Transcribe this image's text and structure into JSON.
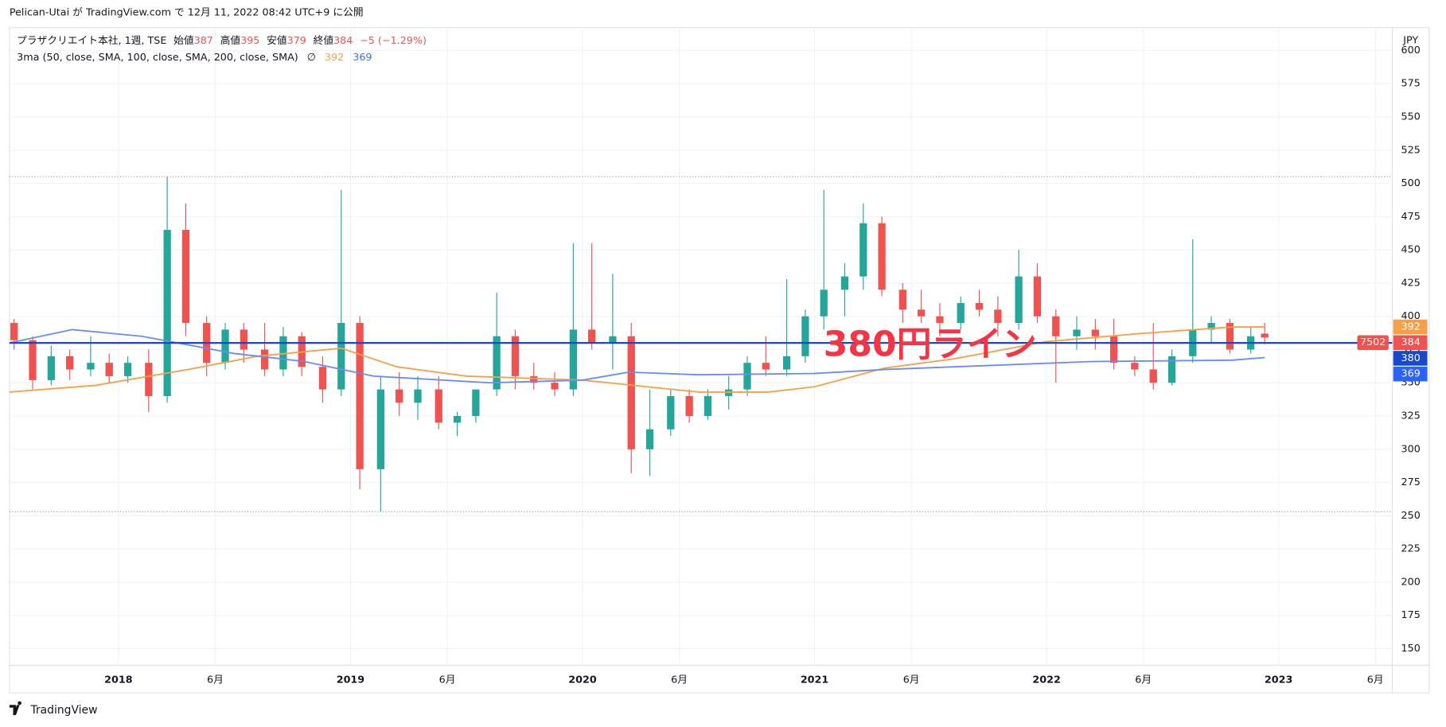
{
  "header": {
    "published": "Pelican-Utai が TradingView.com で 12月 11, 2022 08:42 UTC+9 に公開"
  },
  "footer": {
    "brand": "TradingView"
  },
  "chart_data": {
    "type": "candlestick",
    "symbol": "プラザクリエイト本社, 1週, TSE",
    "legend": {
      "open_label": "始値",
      "high_label": "高値",
      "low_label": "安値",
      "close_label": "終値",
      "change": "−5 (−1.29%)",
      "indicator": "3ma (50, close, SMA, 100, close, SMA, 200, close, SMA)",
      "empty_value": "∅"
    },
    "currency": "JPY",
    "symbol_code": "7502",
    "annotation": "380円ライン",
    "up_color": "#26a69a",
    "down_color": "#ef5350",
    "xlim": [
      2017.53,
      2023.49
    ],
    "ylim": [
      137.5,
      603.3
    ],
    "yticks": [
      150,
      175,
      200,
      225,
      250,
      275,
      300,
      325,
      350,
      375,
      400,
      425,
      450,
      475,
      500,
      525,
      550,
      575,
      600
    ],
    "xticks": [
      2018,
      {
        "value": 2018.417,
        "label": "6月"
      },
      2019,
      {
        "value": 2019.417,
        "label": "6月"
      },
      2020,
      {
        "value": 2020.417,
        "label": "6月"
      },
      2021,
      {
        "value": 2021.417,
        "label": "6月"
      },
      2022,
      {
        "value": 2022.417,
        "label": "6月"
      },
      2023,
      {
        "value": 2023.417,
        "label": "6月"
      }
    ],
    "grid": true,
    "candles": [
      {
        "x": 2017.55,
        "open": 395,
        "high": 398,
        "low": 375,
        "close": 382
      },
      {
        "x": 2017.63,
        "open": 382,
        "high": 385,
        "low": 345,
        "close": 352
      },
      {
        "x": 2017.71,
        "open": 352,
        "high": 378,
        "low": 348,
        "close": 370
      },
      {
        "x": 2017.79,
        "open": 370,
        "high": 375,
        "low": 352,
        "close": 360
      },
      {
        "x": 2017.88,
        "open": 360,
        "high": 385,
        "low": 355,
        "close": 365
      },
      {
        "x": 2017.96,
        "open": 365,
        "high": 372,
        "low": 350,
        "close": 355
      },
      {
        "x": 2018.04,
        "open": 355,
        "high": 370,
        "low": 350,
        "close": 365
      },
      {
        "x": 2018.13,
        "open": 365,
        "high": 375,
        "low": 328,
        "close": 340
      },
      {
        "x": 2018.21,
        "open": 340,
        "high": 505,
        "low": 335,
        "close": 465
      },
      {
        "x": 2018.29,
        "open": 465,
        "high": 485,
        "low": 385,
        "close": 395
      },
      {
        "x": 2018.38,
        "open": 395,
        "high": 400,
        "low": 355,
        "close": 365
      },
      {
        "x": 2018.46,
        "open": 365,
        "high": 395,
        "low": 360,
        "close": 390
      },
      {
        "x": 2018.54,
        "open": 390,
        "high": 395,
        "low": 365,
        "close": 375
      },
      {
        "x": 2018.63,
        "open": 375,
        "high": 395,
        "low": 355,
        "close": 360
      },
      {
        "x": 2018.71,
        "open": 360,
        "high": 392,
        "low": 355,
        "close": 385
      },
      {
        "x": 2018.79,
        "open": 385,
        "high": 388,
        "low": 355,
        "close": 362
      },
      {
        "x": 2018.88,
        "open": 362,
        "high": 370,
        "low": 335,
        "close": 345
      },
      {
        "x": 2018.96,
        "open": 345,
        "high": 495,
        "low": 340,
        "close": 395
      },
      {
        "x": 2019.04,
        "open": 395,
        "high": 400,
        "low": 270,
        "close": 285
      },
      {
        "x": 2019.13,
        "open": 285,
        "high": 355,
        "low": 253,
        "close": 345
      },
      {
        "x": 2019.21,
        "open": 345,
        "high": 358,
        "low": 325,
        "close": 335
      },
      {
        "x": 2019.29,
        "open": 335,
        "high": 355,
        "low": 322,
        "close": 345
      },
      {
        "x": 2019.38,
        "open": 345,
        "high": 355,
        "low": 315,
        "close": 320
      },
      {
        "x": 2019.46,
        "open": 320,
        "high": 328,
        "low": 310,
        "close": 325
      },
      {
        "x": 2019.54,
        "open": 325,
        "high": 345,
        "low": 320,
        "close": 345
      },
      {
        "x": 2019.63,
        "open": 345,
        "high": 418,
        "low": 340,
        "close": 385
      },
      {
        "x": 2019.71,
        "open": 385,
        "high": 390,
        "low": 345,
        "close": 355
      },
      {
        "x": 2019.79,
        "open": 355,
        "high": 365,
        "low": 345,
        "close": 350
      },
      {
        "x": 2019.88,
        "open": 350,
        "high": 358,
        "low": 340,
        "close": 345
      },
      {
        "x": 2019.96,
        "open": 345,
        "high": 455,
        "low": 340,
        "close": 390
      },
      {
        "x": 2020.04,
        "open": 390,
        "high": 455,
        "low": 375,
        "close": 380
      },
      {
        "x": 2020.13,
        "open": 380,
        "high": 432,
        "low": 360,
        "close": 385
      },
      {
        "x": 2020.21,
        "open": 385,
        "high": 395,
        "low": 282,
        "close": 300
      },
      {
        "x": 2020.29,
        "open": 300,
        "high": 345,
        "low": 280,
        "close": 315
      },
      {
        "x": 2020.38,
        "open": 315,
        "high": 345,
        "low": 310,
        "close": 340
      },
      {
        "x": 2020.46,
        "open": 340,
        "high": 345,
        "low": 320,
        "close": 325
      },
      {
        "x": 2020.54,
        "open": 325,
        "high": 345,
        "low": 322,
        "close": 340
      },
      {
        "x": 2020.63,
        "open": 340,
        "high": 355,
        "low": 330,
        "close": 345
      },
      {
        "x": 2020.71,
        "open": 345,
        "high": 370,
        "low": 340,
        "close": 365
      },
      {
        "x": 2020.79,
        "open": 365,
        "high": 385,
        "low": 355,
        "close": 360
      },
      {
        "x": 2020.88,
        "open": 360,
        "high": 428,
        "low": 355,
        "close": 370
      },
      {
        "x": 2020.96,
        "open": 370,
        "high": 405,
        "low": 365,
        "close": 400
      },
      {
        "x": 2021.04,
        "open": 400,
        "high": 495,
        "low": 390,
        "close": 420
      },
      {
        "x": 2021.13,
        "open": 420,
        "high": 440,
        "low": 400,
        "close": 430
      },
      {
        "x": 2021.21,
        "open": 430,
        "high": 485,
        "low": 420,
        "close": 470
      },
      {
        "x": 2021.29,
        "open": 470,
        "high": 475,
        "low": 415,
        "close": 420
      },
      {
        "x": 2021.38,
        "open": 420,
        "high": 425,
        "low": 395,
        "close": 405
      },
      {
        "x": 2021.46,
        "open": 405,
        "high": 420,
        "low": 395,
        "close": 400
      },
      {
        "x": 2021.54,
        "open": 400,
        "high": 410,
        "low": 385,
        "close": 395
      },
      {
        "x": 2021.63,
        "open": 395,
        "high": 415,
        "low": 390,
        "close": 410
      },
      {
        "x": 2021.71,
        "open": 410,
        "high": 420,
        "low": 400,
        "close": 405
      },
      {
        "x": 2021.79,
        "open": 405,
        "high": 415,
        "low": 385,
        "close": 395
      },
      {
        "x": 2021.88,
        "open": 395,
        "high": 450,
        "low": 390,
        "close": 430
      },
      {
        "x": 2021.96,
        "open": 430,
        "high": 440,
        "low": 395,
        "close": 400
      },
      {
        "x": 2022.04,
        "open": 400,
        "high": 405,
        "low": 350,
        "close": 385
      },
      {
        "x": 2022.13,
        "open": 385,
        "high": 400,
        "low": 375,
        "close": 390
      },
      {
        "x": 2022.21,
        "open": 390,
        "high": 398,
        "low": 375,
        "close": 385
      },
      {
        "x": 2022.29,
        "open": 385,
        "high": 398,
        "low": 360,
        "close": 365
      },
      {
        "x": 2022.38,
        "open": 365,
        "high": 370,
        "low": 355,
        "close": 360
      },
      {
        "x": 2022.46,
        "open": 360,
        "high": 395,
        "low": 345,
        "close": 350
      },
      {
        "x": 2022.54,
        "open": 350,
        "high": 375,
        "low": 348,
        "close": 370
      },
      {
        "x": 2022.63,
        "open": 370,
        "high": 458,
        "low": 365,
        "close": 390
      },
      {
        "x": 2022.71,
        "open": 390,
        "high": 400,
        "low": 380,
        "close": 395
      },
      {
        "x": 2022.79,
        "open": 395,
        "high": 398,
        "low": 372,
        "close": 375
      },
      {
        "x": 2022.88,
        "open": 375,
        "high": 392,
        "low": 372,
        "close": 385
      },
      {
        "x": 2022.94,
        "open": 387,
        "high": 395,
        "low": 379,
        "close": 384
      }
    ],
    "series": [
      {
        "color": "#f7a04b",
        "x": [
          2017.53,
          2017.9,
          2018.3,
          2018.6,
          2018.96,
          2019.2,
          2019.5,
          2020.0,
          2020.5,
          2020.8,
          2021.0,
          2021.3,
          2021.6,
          2022.0,
          2022.4,
          2022.8,
          2022.94
        ],
        "values": [
          343,
          348,
          360,
          370,
          376,
          362,
          355,
          352,
          343,
          343,
          347,
          361,
          368,
          381,
          387,
          392,
          392
        ]
      },
      {
        "color": "#6a8cf2",
        "x": [
          2017.53,
          2017.8,
          2018.1,
          2018.5,
          2018.8,
          2019.1,
          2019.6,
          2020.0,
          2020.2,
          2020.5,
          2021.0,
          2021.3,
          2021.9,
          2022.2,
          2022.8,
          2022.94
        ],
        "values": [
          380,
          390,
          385,
          372,
          366,
          355,
          350,
          352,
          358,
          356,
          357,
          360,
          364,
          366,
          367,
          369
        ]
      }
    ],
    "price_line": {
      "price": 380,
      "color": "#1848cc"
    },
    "range_lines": [
      505,
      253
    ]
  }
}
